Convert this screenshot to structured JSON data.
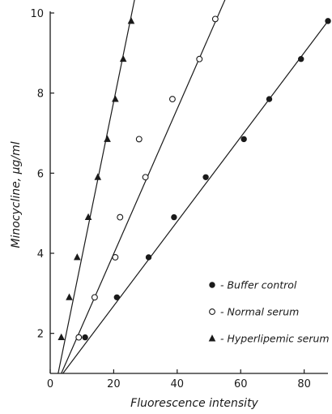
{
  "chart_data": {
    "type": "scatter",
    "xlabel": "Fluorescence intensity",
    "ylabel": "Minocycline, μg/ml",
    "xlim": [
      0,
      88
    ],
    "ylim": [
      1,
      10
    ],
    "xticks": [
      0,
      20,
      40,
      60,
      80
    ],
    "yticks": [
      2,
      4,
      6,
      8,
      10
    ],
    "grid": false,
    "legend_position": "right",
    "series": [
      {
        "name": "- Buffer control",
        "marker": "filled-circle",
        "color": "#1a1a1a",
        "points": [
          [
            11,
            1.9
          ],
          [
            21,
            2.9
          ],
          [
            31,
            3.9
          ],
          [
            39,
            4.9
          ],
          [
            49,
            5.9
          ],
          [
            61,
            6.85
          ],
          [
            69,
            7.85
          ],
          [
            79,
            8.85
          ],
          [
            87.5,
            9.8
          ]
        ],
        "fit_line": [
          [
            4,
            1
          ],
          [
            88,
            9.85
          ]
        ]
      },
      {
        "name": "- Normal serum",
        "marker": "open-circle",
        "color": "#1a1a1a",
        "points": [
          [
            9,
            1.9
          ],
          [
            14,
            2.9
          ],
          [
            20.5,
            3.9
          ],
          [
            22,
            4.9
          ],
          [
            30,
            5.9
          ],
          [
            28,
            6.85
          ],
          [
            38.5,
            7.85
          ],
          [
            47,
            8.85
          ],
          [
            52,
            9.85
          ]
        ],
        "fit_line": [
          [
            3.5,
            1
          ],
          [
            56,
            10.5
          ]
        ]
      },
      {
        "name": "- Hyperlipemic serum",
        "marker": "filled-triangle",
        "color": "#1a1a1a",
        "points": [
          [
            3.5,
            1.9
          ],
          [
            6,
            2.9
          ],
          [
            8.5,
            3.9
          ],
          [
            12,
            4.9
          ],
          [
            15,
            5.9
          ],
          [
            18,
            6.85
          ],
          [
            20.5,
            7.85
          ],
          [
            23,
            8.85
          ],
          [
            25.5,
            9.8
          ]
        ],
        "fit_line": [
          [
            2.5,
            1
          ],
          [
            27,
            10.5
          ]
        ]
      }
    ]
  }
}
